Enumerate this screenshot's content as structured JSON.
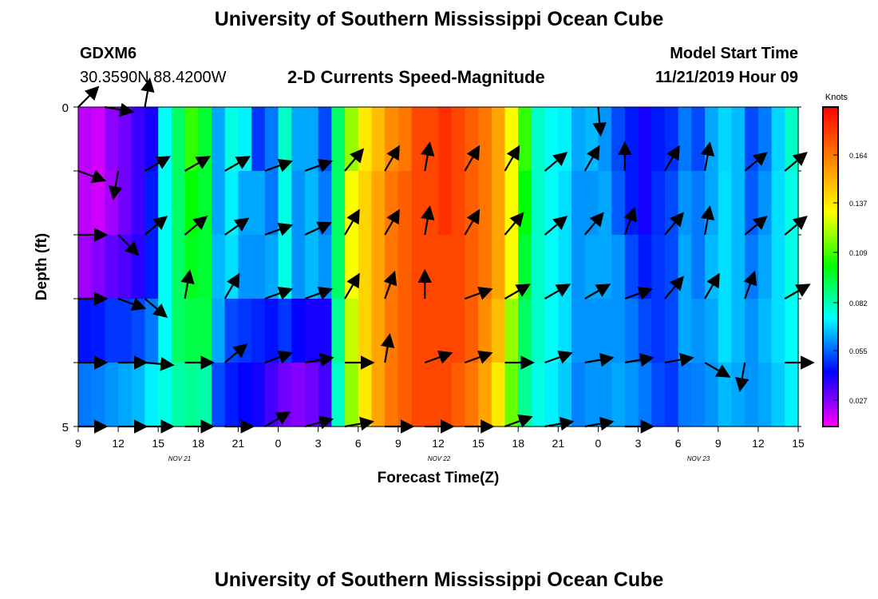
{
  "header": {
    "title": "University of Southern Mississippi Ocean Cube",
    "station_id": "GDXM6",
    "station_coords": "30.3590N 88.4200W",
    "subtitle": "2-D Currents Speed-Magnitude",
    "model_label": "Model Start Time",
    "model_time": "11/21/2019 Hour 09"
  },
  "footer": {
    "title": "University of Southern Mississippi Ocean Cube"
  },
  "chart_data": {
    "type": "heatmap",
    "title": "2-D Currents Speed-Magnitude",
    "xlabel": "Forecast Time(Z)",
    "ylabel": "Depth (ft)",
    "ylim": [
      0,
      5
    ],
    "y_ticks": [
      "0",
      "5"
    ],
    "x_ticks": [
      "9",
      "12",
      "15",
      "18",
      "21",
      "0",
      "3",
      "6",
      "9",
      "12",
      "15",
      "18",
      "21",
      "0",
      "3",
      "6",
      "9",
      "12",
      "15"
    ],
    "date_labels": [
      "NOV 21",
      "NOV 22",
      "NOV 23"
    ],
    "colorbar": {
      "unit": "Knots",
      "ticks": [
        "0.164",
        "0.137",
        "0.109",
        "0.082",
        "0.055",
        "0.027"
      ],
      "colors": [
        "#ff0000",
        "#ff8000",
        "#ffff00",
        "#00ff00",
        "#00ffff",
        "#0000ff",
        "#ff00ff"
      ]
    },
    "x_hours": [
      9,
      10,
      11,
      12,
      13,
      14,
      15,
      16,
      17,
      18,
      19,
      20,
      21,
      22,
      23,
      24,
      25,
      26,
      27,
      28,
      29,
      30,
      31,
      32,
      33,
      34,
      35,
      36,
      37,
      38,
      39,
      40,
      41,
      42,
      43,
      44,
      45,
      46,
      47,
      48,
      49,
      50,
      51,
      52,
      53,
      54,
      55,
      56,
      57,
      58,
      59,
      60,
      61,
      62,
      63
    ],
    "depth_layers": [
      0,
      1,
      2,
      3,
      4
    ],
    "speed": [
      [
        0.022,
        0.02,
        0.027,
        0.03,
        0.036,
        0.04,
        0.07,
        0.085,
        0.1,
        0.09,
        0.06,
        0.072,
        0.068,
        0.048,
        0.055,
        0.075,
        0.06,
        0.06,
        0.05,
        0.085,
        0.11,
        0.125,
        0.135,
        0.145,
        0.15,
        0.16,
        0.16,
        0.165,
        0.16,
        0.155,
        0.15,
        0.14,
        0.12,
        0.1,
        0.075,
        0.07,
        0.068,
        0.06,
        0.062,
        0.058,
        0.05,
        0.045,
        0.04,
        0.045,
        0.047,
        0.055,
        0.05,
        0.06,
        0.065,
        0.062,
        0.05,
        0.055,
        0.065,
        0.075,
        0.072
      ],
      [
        0.022,
        0.02,
        0.025,
        0.03,
        0.036,
        0.045,
        0.07,
        0.085,
        0.095,
        0.09,
        0.06,
        0.068,
        0.06,
        0.06,
        0.055,
        0.072,
        0.058,
        0.062,
        0.055,
        0.085,
        0.12,
        0.13,
        0.14,
        0.15,
        0.155,
        0.16,
        0.16,
        0.165,
        0.16,
        0.155,
        0.15,
        0.14,
        0.12,
        0.095,
        0.075,
        0.07,
        0.066,
        0.058,
        0.058,
        0.06,
        0.052,
        0.045,
        0.04,
        0.047,
        0.05,
        0.058,
        0.055,
        0.06,
        0.066,
        0.062,
        0.052,
        0.058,
        0.066,
        0.072,
        0.07
      ],
      [
        0.025,
        0.028,
        0.032,
        0.034,
        0.038,
        0.045,
        0.07,
        0.085,
        0.092,
        0.09,
        0.062,
        0.066,
        0.058,
        0.058,
        0.06,
        0.072,
        0.058,
        0.062,
        0.058,
        0.085,
        0.12,
        0.13,
        0.14,
        0.15,
        0.155,
        0.16,
        0.16,
        0.16,
        0.16,
        0.155,
        0.15,
        0.14,
        0.12,
        0.09,
        0.075,
        0.07,
        0.066,
        0.058,
        0.06,
        0.06,
        0.058,
        0.05,
        0.045,
        0.048,
        0.05,
        0.06,
        0.055,
        0.062,
        0.066,
        0.062,
        0.055,
        0.06,
        0.066,
        0.072,
        0.07
      ],
      [
        0.044,
        0.045,
        0.048,
        0.048,
        0.05,
        0.055,
        0.07,
        0.085,
        0.088,
        0.088,
        0.06,
        0.05,
        0.048,
        0.046,
        0.044,
        0.048,
        0.042,
        0.04,
        0.04,
        0.08,
        0.115,
        0.13,
        0.14,
        0.15,
        0.155,
        0.16,
        0.16,
        0.16,
        0.16,
        0.155,
        0.145,
        0.135,
        0.11,
        0.085,
        0.075,
        0.07,
        0.066,
        0.058,
        0.058,
        0.058,
        0.058,
        0.055,
        0.05,
        0.048,
        0.05,
        0.06,
        0.058,
        0.06,
        0.066,
        0.062,
        0.058,
        0.062,
        0.066,
        0.07,
        0.068
      ],
      [
        0.055,
        0.056,
        0.058,
        0.06,
        0.062,
        0.068,
        0.072,
        0.078,
        0.08,
        0.078,
        0.05,
        0.045,
        0.042,
        0.04,
        0.035,
        0.03,
        0.028,
        0.03,
        0.035,
        0.075,
        0.11,
        0.125,
        0.14,
        0.15,
        0.155,
        0.16,
        0.16,
        0.16,
        0.155,
        0.15,
        0.14,
        0.125,
        0.105,
        0.08,
        0.072,
        0.068,
        0.064,
        0.056,
        0.058,
        0.058,
        0.06,
        0.058,
        0.055,
        0.05,
        0.048,
        0.055,
        0.056,
        0.058,
        0.062,
        0.06,
        0.058,
        0.06,
        0.064,
        0.068,
        0.066
      ]
    ],
    "arrows": [
      {
        "row": 0,
        "x": [
          9,
          11,
          14,
          48
        ],
        "dir": [
          -45,
          10,
          -80,
          85
        ]
      },
      {
        "row": 1,
        "x": [
          9,
          12,
          14,
          17,
          20,
          23,
          26,
          29,
          32,
          35,
          38,
          41,
          44,
          47,
          50,
          53,
          56,
          59,
          62
        ],
        "dir": [
          20,
          100,
          -30,
          -30,
          -30,
          -20,
          -20,
          -50,
          -60,
          -80,
          -60,
          -60,
          -40,
          -60,
          -90,
          -60,
          -80,
          -40,
          -40
        ]
      },
      {
        "row": 2,
        "x": [
          9,
          12,
          14,
          17,
          20,
          23,
          26,
          29,
          32,
          35,
          38,
          41,
          44,
          47,
          50,
          53,
          56,
          59,
          62
        ],
        "dir": [
          0,
          45,
          -40,
          -40,
          -35,
          -20,
          -25,
          -60,
          -60,
          -80,
          -60,
          -50,
          -40,
          -50,
          -70,
          -50,
          -80,
          -40,
          -40
        ]
      },
      {
        "row": 3,
        "x": [
          9,
          12,
          14,
          17,
          20,
          23,
          26,
          29,
          32,
          35,
          38,
          41,
          44,
          47,
          50,
          53,
          56,
          59,
          62
        ],
        "dir": [
          0,
          20,
          40,
          -80,
          -60,
          -20,
          -20,
          -60,
          -70,
          -90,
          -20,
          -30,
          -30,
          -30,
          -20,
          -50,
          -60,
          -70,
          -30
        ]
      },
      {
        "row": 4,
        "x": [
          9,
          12,
          14,
          17,
          20,
          23,
          26,
          29,
          32,
          35,
          38,
          41,
          44,
          47,
          50,
          53,
          56,
          59,
          62
        ],
        "dir": [
          0,
          0,
          5,
          0,
          -40,
          -20,
          -10,
          0,
          -80,
          -20,
          -20,
          0,
          -20,
          -10,
          -10,
          -10,
          30,
          100,
          0
        ]
      },
      {
        "row": 5,
        "x": [
          9,
          12,
          14,
          17,
          20,
          23,
          26,
          29,
          32,
          35,
          38,
          41,
          44,
          47,
          50
        ],
        "dir": [
          0,
          0,
          0,
          0,
          0,
          -30,
          -15,
          -10,
          0,
          0,
          0,
          -20,
          -10,
          -10,
          0
        ]
      }
    ]
  }
}
